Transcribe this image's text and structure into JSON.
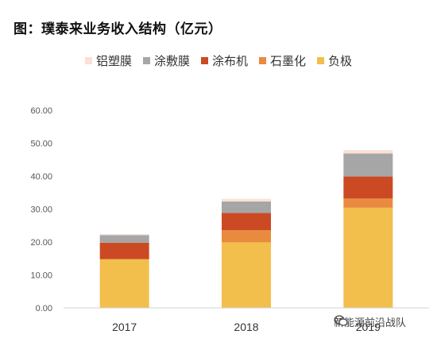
{
  "title": "图：璞泰来业务收入结构（亿元）",
  "watermark": "新能源前沿战队",
  "chart_data": {
    "type": "bar",
    "stacked": true,
    "categories": [
      "2017",
      "2018",
      "2019"
    ],
    "series": [
      {
        "name": "负极",
        "color": "#F2BE4C",
        "values": [
          14.8,
          19.9,
          30.4
        ]
      },
      {
        "name": "石墨化",
        "color": "#EA8A3E",
        "values": [
          0.0,
          3.7,
          2.8
        ]
      },
      {
        "name": "涂布机",
        "color": "#CC4A23",
        "values": [
          5.0,
          5.2,
          6.7
        ]
      },
      {
        "name": "涂敷膜",
        "color": "#A6A6A6",
        "values": [
          2.3,
          3.5,
          7.0
        ]
      },
      {
        "name": "铝塑膜",
        "color": "#FAE0D6",
        "values": [
          0.3,
          0.8,
          1.0
        ]
      }
    ],
    "legend_order": [
      "铝塑膜",
      "涂敷膜",
      "涂布机",
      "石墨化",
      "负极"
    ],
    "yticks": [
      "0.00",
      "10.00",
      "20.00",
      "30.00",
      "40.00",
      "50.00",
      "60.00"
    ],
    "ylim": [
      0,
      60
    ],
    "xlabel": "",
    "ylabel": "",
    "grid": false,
    "legend_position": "top"
  }
}
